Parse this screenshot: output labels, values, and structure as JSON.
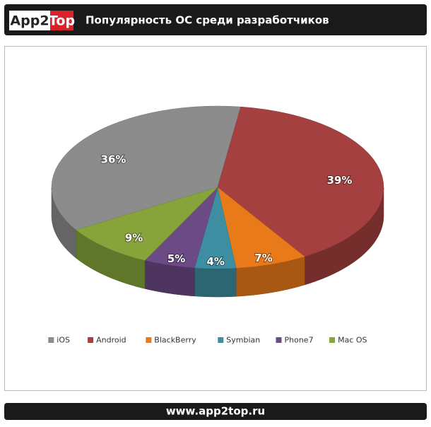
{
  "logo_left": "App2",
  "logo_right": "Top",
  "footer": "www.app2top.ru",
  "chart_data": {
    "type": "pie",
    "title": "Популярность ОС среди разработчиков",
    "categories": [
      "iOS",
      "Android",
      "BlackBerry",
      "Symbian",
      "Phone7",
      "Mac OS"
    ],
    "values": [
      36,
      39,
      7,
      4,
      5,
      9
    ],
    "value_labels": [
      "36%",
      "39%",
      "7%",
      "4%",
      "5%",
      "9%"
    ],
    "colors": [
      "#8c8c8c",
      "#a4403f",
      "#e97a1a",
      "#3d8ea0",
      "#6b4a85",
      "#86a43a"
    ],
    "legend": "bottom"
  }
}
